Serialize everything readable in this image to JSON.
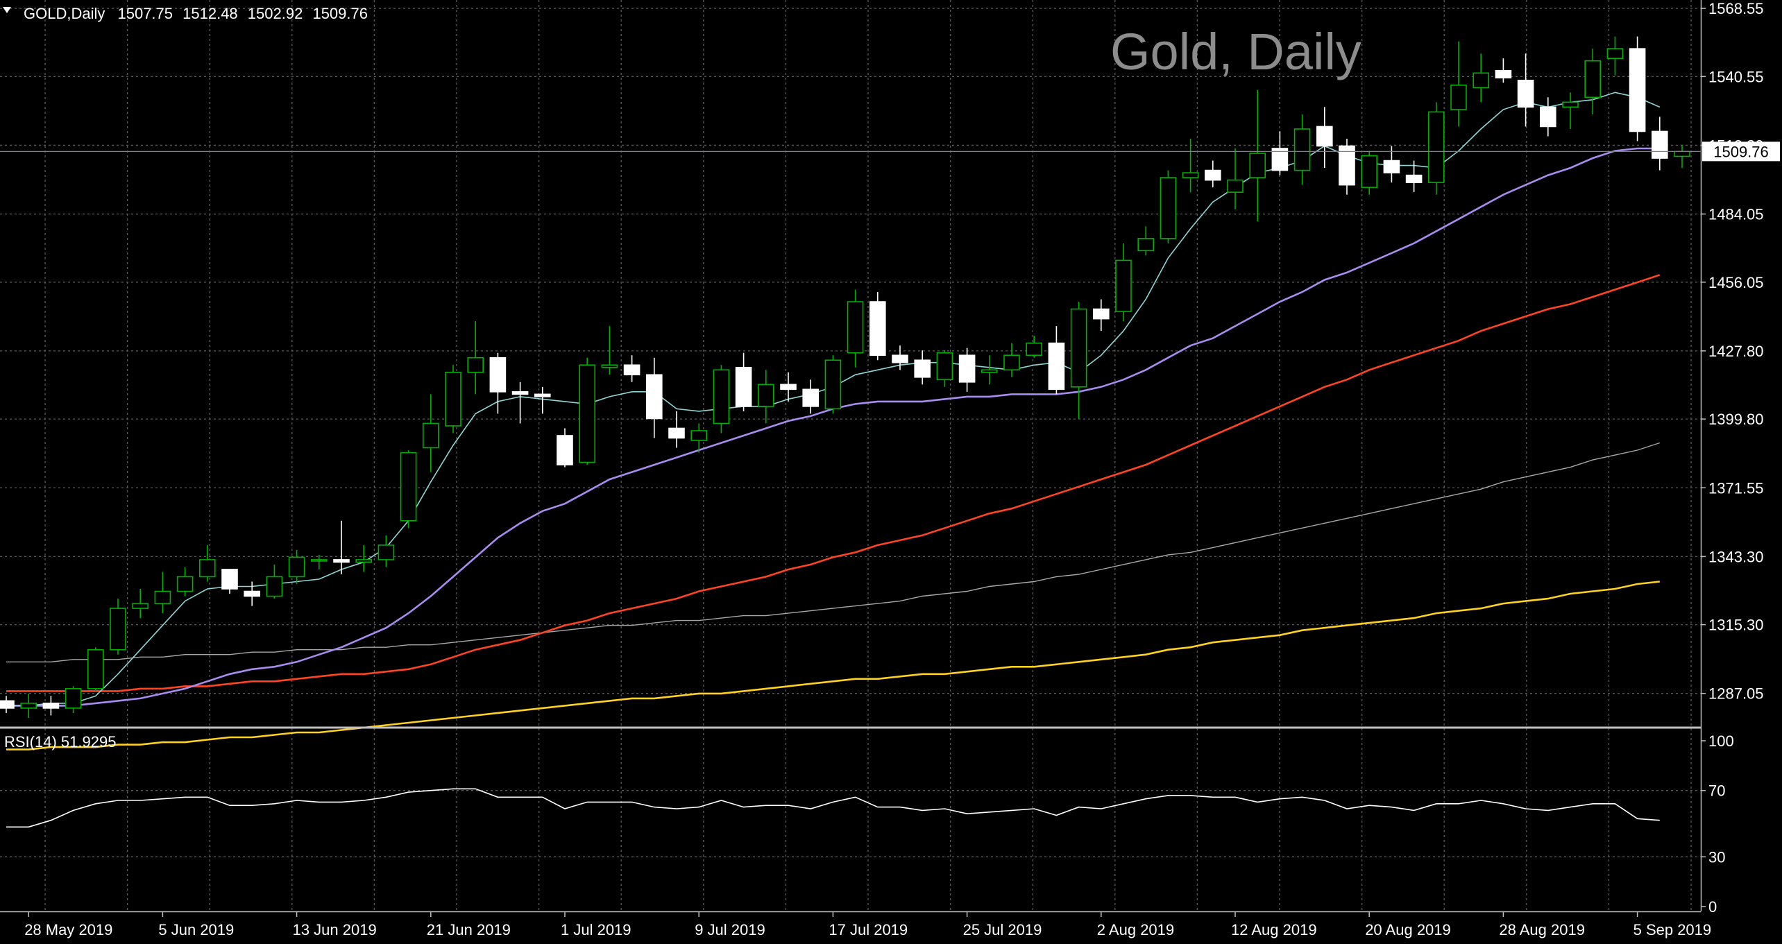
{
  "header": {
    "symbol": "GOLD,Daily",
    "open": "1507.75",
    "high": "1512.48",
    "low": "1502.92",
    "close": "1509.76"
  },
  "watermark": "Gold, Daily",
  "price_axis_labels": [
    "1568.55",
    "1540.55",
    "1512.30",
    "1484.05",
    "1456.05",
    "1427.80",
    "1399.80",
    "1371.55",
    "1343.30",
    "1315.30",
    "1287.05"
  ],
  "current_price_label": "1509.76",
  "rsi": {
    "title": "RSI(14) 51.9295",
    "levels": [
      "100",
      "70",
      "30",
      "0"
    ]
  },
  "date_labels": [
    "28 May 2019",
    "5 Jun 2019",
    "13 Jun 2019",
    "21 Jun 2019",
    "1 Jul 2019",
    "9 Jul 2019",
    "17 Jul 2019",
    "25 Jul 2019",
    "2 Aug 2019",
    "12 Aug 2019",
    "20 Aug 2019",
    "28 Aug 2019",
    "5 Sep 2019"
  ],
  "colors": {
    "background": "#000000",
    "bull_candle": "#00b000",
    "bear_candle": "#ffffff",
    "ma_fast": "#8fd6d6",
    "ma_medium": "#a98cf0",
    "ma_slow": "#ff4422",
    "ma_200": "#a8a8a8",
    "ma_long": "#ffd21f",
    "rsi_line": "#ffffff",
    "grid": "#5a5a5a"
  },
  "chart_data": {
    "type": "candlestick",
    "price_range": [
      1273,
      1572
    ],
    "rsi_range": [
      0,
      100
    ],
    "grid": true,
    "dates": [
      "2019-05-27",
      "2019-05-28",
      "2019-05-29",
      "2019-05-30",
      "2019-05-31",
      "2019-06-03",
      "2019-06-04",
      "2019-06-05",
      "2019-06-06",
      "2019-06-07",
      "2019-06-10",
      "2019-06-11",
      "2019-06-12",
      "2019-06-13",
      "2019-06-14",
      "2019-06-17",
      "2019-06-18",
      "2019-06-19",
      "2019-06-20",
      "2019-06-21",
      "2019-06-24",
      "2019-06-25",
      "2019-06-26",
      "2019-06-27",
      "2019-06-28",
      "2019-07-01",
      "2019-07-02",
      "2019-07-03",
      "2019-07-04",
      "2019-07-05",
      "2019-07-08",
      "2019-07-09",
      "2019-07-10",
      "2019-07-11",
      "2019-07-12",
      "2019-07-15",
      "2019-07-16",
      "2019-07-17",
      "2019-07-18",
      "2019-07-19",
      "2019-07-22",
      "2019-07-23",
      "2019-07-24",
      "2019-07-25",
      "2019-07-26",
      "2019-07-29",
      "2019-07-30",
      "2019-07-31",
      "2019-08-01",
      "2019-08-02",
      "2019-08-05",
      "2019-08-06",
      "2019-08-07",
      "2019-08-08",
      "2019-08-09",
      "2019-08-12",
      "2019-08-13",
      "2019-08-14",
      "2019-08-15",
      "2019-08-16",
      "2019-08-19",
      "2019-08-20",
      "2019-08-21",
      "2019-08-22",
      "2019-08-23",
      "2019-08-26",
      "2019-08-27",
      "2019-08-28",
      "2019-08-29",
      "2019-08-30",
      "2019-09-02",
      "2019-09-03",
      "2019-09-04",
      "2019-09-05",
      "2019-09-06"
    ],
    "ohlc": [
      [
        1284,
        1286,
        1279,
        1281
      ],
      [
        1281,
        1287,
        1277,
        1283
      ],
      [
        1283,
        1286,
        1278,
        1281
      ],
      [
        1281,
        1290,
        1279,
        1289
      ],
      [
        1289,
        1306,
        1288,
        1305
      ],
      [
        1305,
        1326,
        1303,
        1322
      ],
      [
        1322,
        1330,
        1318,
        1324
      ],
      [
        1324,
        1337,
        1320,
        1329
      ],
      [
        1329,
        1339,
        1327,
        1335
      ],
      [
        1335,
        1348,
        1333,
        1342
      ],
      [
        1338,
        1338,
        1328,
        1330
      ],
      [
        1329,
        1333,
        1323,
        1327
      ],
      [
        1327,
        1340,
        1326,
        1335
      ],
      [
        1335,
        1346,
        1332,
        1343
      ],
      [
        1342,
        1344,
        1338,
        1342
      ],
      [
        1342,
        1358,
        1336,
        1341
      ],
      [
        1341,
        1348,
        1337,
        1342
      ],
      [
        1342,
        1352,
        1339,
        1348
      ],
      [
        1358,
        1387,
        1355,
        1386
      ],
      [
        1388,
        1410,
        1378,
        1398
      ],
      [
        1397,
        1422,
        1394,
        1419
      ],
      [
        1419,
        1440,
        1410,
        1425
      ],
      [
        1425,
        1427,
        1402,
        1411
      ],
      [
        1411,
        1415,
        1398,
        1410
      ],
      [
        1410,
        1413,
        1402,
        1409
      ],
      [
        1393,
        1396,
        1380,
        1381
      ],
      [
        1382,
        1425,
        1381,
        1422
      ],
      [
        1421,
        1438,
        1418,
        1422
      ],
      [
        1422,
        1426,
        1415,
        1418
      ],
      [
        1418,
        1425,
        1392,
        1400
      ],
      [
        1396,
        1403,
        1388,
        1392
      ],
      [
        1391,
        1398,
        1386,
        1395
      ],
      [
        1398,
        1422,
        1394,
        1420
      ],
      [
        1421,
        1427,
        1403,
        1405
      ],
      [
        1405,
        1420,
        1398,
        1414
      ],
      [
        1414,
        1419,
        1407,
        1412
      ],
      [
        1412,
        1416,
        1402,
        1405
      ],
      [
        1404,
        1426,
        1402,
        1424
      ],
      [
        1427,
        1453,
        1421,
        1448
      ],
      [
        1448,
        1452,
        1424,
        1426
      ],
      [
        1426,
        1430,
        1420,
        1423
      ],
      [
        1424,
        1428,
        1414,
        1417
      ],
      [
        1416,
        1428,
        1413,
        1427
      ],
      [
        1426,
        1429,
        1411,
        1415
      ],
      [
        1419,
        1426,
        1414,
        1420
      ],
      [
        1420,
        1431,
        1417,
        1426
      ],
      [
        1426,
        1434,
        1425,
        1431
      ],
      [
        1431,
        1438,
        1410,
        1412
      ],
      [
        1413,
        1448,
        1400,
        1445
      ],
      [
        1445,
        1449,
        1436,
        1441
      ],
      [
        1444,
        1472,
        1440,
        1465
      ],
      [
        1469,
        1479,
        1467,
        1474
      ],
      [
        1474,
        1502,
        1472,
        1499
      ],
      [
        1499,
        1515,
        1493,
        1501
      ],
      [
        1502,
        1506,
        1495,
        1498
      ],
      [
        1493,
        1511,
        1486,
        1498
      ],
      [
        1499,
        1535,
        1481,
        1509
      ],
      [
        1511,
        1518,
        1500,
        1502
      ],
      [
        1502,
        1525,
        1496,
        1519
      ],
      [
        1520,
        1528,
        1503,
        1512
      ],
      [
        1512,
        1515,
        1492,
        1496
      ],
      [
        1495,
        1510,
        1492,
        1508
      ],
      [
        1506,
        1512,
        1497,
        1501
      ],
      [
        1500,
        1506,
        1493,
        1497
      ],
      [
        1497,
        1530,
        1492,
        1526
      ],
      [
        1527,
        1555,
        1520,
        1537
      ],
      [
        1536,
        1550,
        1530,
        1542
      ],
      [
        1543,
        1548,
        1538,
        1540
      ],
      [
        1539,
        1550,
        1520,
        1528
      ],
      [
        1528,
        1532,
        1516,
        1520
      ],
      [
        1528,
        1534,
        1519,
        1530
      ],
      [
        1532,
        1552,
        1525,
        1547
      ],
      [
        1548,
        1557,
        1541,
        1552
      ],
      [
        1552,
        1557,
        1514,
        1518
      ],
      [
        1518,
        1524,
        1502,
        1507
      ],
      [
        1507.75,
        1512.48,
        1502.92,
        1509.76
      ]
    ],
    "ma_fast": [
      1282,
      1282,
      1283,
      1283,
      1286,
      1295,
      1305,
      1315,
      1325,
      1330,
      1331,
      1331,
      1332,
      1333,
      1334,
      1338,
      1341,
      1347,
      1358,
      1374,
      1389,
      1402,
      1407,
      1409,
      1408,
      1407,
      1406,
      1409,
      1411,
      1411,
      1404,
      1403,
      1404,
      1405,
      1405,
      1408,
      1410,
      1413,
      1418,
      1420,
      1422,
      1423,
      1423,
      1422,
      1421,
      1420,
      1422,
      1423,
      1419,
      1426,
      1436,
      1449,
      1466,
      1478,
      1489,
      1495,
      1501,
      1503,
      1506,
      1512,
      1508,
      1505,
      1504,
      1504,
      1503,
      1510,
      1519,
      1527,
      1530,
      1528,
      1530,
      1531,
      1534,
      1532,
      1528
    ],
    "ma_medium": [
      1282,
      1282,
      1282,
      1282,
      1283,
      1284,
      1285,
      1287,
      1289,
      1292,
      1295,
      1297,
      1298,
      1300,
      1303,
      1306,
      1310,
      1314,
      1320,
      1327,
      1335,
      1343,
      1351,
      1357,
      1362,
      1365,
      1370,
      1375,
      1378,
      1381,
      1384,
      1387,
      1390,
      1393,
      1396,
      1399,
      1401,
      1404,
      1406,
      1407,
      1407,
      1407,
      1408,
      1409,
      1409,
      1410,
      1410,
      1410,
      1411,
      1413,
      1416,
      1420,
      1425,
      1430,
      1433,
      1438,
      1443,
      1448,
      1452,
      1457,
      1460,
      1464,
      1468,
      1472,
      1477,
      1482,
      1487,
      1492,
      1496,
      1500,
      1503,
      1507,
      1510,
      1511,
      1511
    ],
    "ma_slow": [
      1288,
      1288,
      1288,
      1288,
      1288,
      1288,
      1289,
      1289,
      1290,
      1290,
      1291,
      1292,
      1292,
      1293,
      1294,
      1295,
      1295,
      1296,
      1297,
      1299,
      1302,
      1305,
      1307,
      1309,
      1312,
      1315,
      1317,
      1320,
      1322,
      1324,
      1326,
      1329,
      1331,
      1333,
      1335,
      1338,
      1340,
      1343,
      1345,
      1348,
      1350,
      1352,
      1355,
      1358,
      1361,
      1363,
      1366,
      1369,
      1372,
      1375,
      1378,
      1381,
      1385,
      1389,
      1393,
      1397,
      1401,
      1405,
      1409,
      1413,
      1416,
      1420,
      1423,
      1426,
      1429,
      1432,
      1436,
      1439,
      1442,
      1445,
      1447,
      1450,
      1453,
      1456,
      1459
    ],
    "ma_200": [
      1300,
      1300,
      1300,
      1301,
      1301,
      1301,
      1302,
      1302,
      1303,
      1303,
      1303,
      1304,
      1304,
      1305,
      1305,
      1305,
      1306,
      1306,
      1307,
      1307,
      1308,
      1309,
      1310,
      1311,
      1312,
      1313,
      1314,
      1315,
      1315,
      1316,
      1317,
      1317,
      1318,
      1319,
      1319,
      1320,
      1321,
      1322,
      1323,
      1324,
      1325,
      1327,
      1328,
      1329,
      1331,
      1332,
      1333,
      1335,
      1336,
      1338,
      1340,
      1342,
      1344,
      1345,
      1347,
      1349,
      1351,
      1353,
      1355,
      1357,
      1359,
      1361,
      1363,
      1365,
      1367,
      1369,
      1371,
      1374,
      1376,
      1378,
      1380,
      1383,
      1385,
      1387,
      1390
    ],
    "ma_long": [
      1264,
      1264,
      1265,
      1265,
      1265,
      1266,
      1266,
      1267,
      1267,
      1268,
      1269,
      1269,
      1270,
      1271,
      1271,
      1272,
      1273,
      1274,
      1275,
      1276,
      1277,
      1278,
      1279,
      1280,
      1281,
      1282,
      1283,
      1284,
      1285,
      1285,
      1286,
      1287,
      1287,
      1288,
      1289,
      1290,
      1291,
      1292,
      1293,
      1293,
      1294,
      1295,
      1295,
      1296,
      1297,
      1298,
      1298,
      1299,
      1300,
      1301,
      1302,
      1303,
      1305,
      1306,
      1308,
      1309,
      1310,
      1311,
      1313,
      1314,
      1315,
      1316,
      1317,
      1318,
      1320,
      1321,
      1322,
      1324,
      1325,
      1326,
      1328,
      1329,
      1330,
      1332,
      1333
    ],
    "rsi": [
      48,
      48,
      52,
      58,
      62,
      64,
      64,
      65,
      66,
      66,
      61,
      61,
      62,
      64,
      63,
      63,
      64,
      66,
      69,
      70,
      71,
      71,
      66,
      66,
      66,
      59,
      63,
      63,
      63,
      60,
      59,
      60,
      64,
      60,
      61,
      61,
      59,
      63,
      66,
      60,
      60,
      58,
      59,
      56,
      57,
      58,
      59,
      55,
      60,
      59,
      62,
      65,
      67,
      67,
      66,
      66,
      63,
      65,
      66,
      64,
      59,
      61,
      60,
      58,
      62,
      62,
      64,
      62,
      59,
      58,
      60,
      62,
      62,
      53,
      52
    ]
  }
}
